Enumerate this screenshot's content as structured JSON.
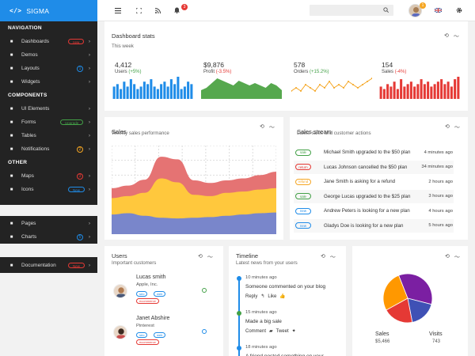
{
  "brand": {
    "code": "</>",
    "name": "SIGMA",
    "color": "#1f8ce8"
  },
  "topbar": {
    "notif_count": "3",
    "avatar_count": "1",
    "search_placeholder": ""
  },
  "sidebar": {
    "sections": [
      {
        "header": "NAVIGATION",
        "items": [
          {
            "label": "Dashboards",
            "icon": "dashboard-icon",
            "badge": "new",
            "badge_color": "#e53935"
          },
          {
            "label": "Demos",
            "icon": "demos-icon"
          },
          {
            "label": "Layouts",
            "icon": "code-icon",
            "count": "1",
            "count_color": "#1f8ce8"
          },
          {
            "label": "Widgets",
            "icon": "widgets-icon"
          }
        ]
      },
      {
        "header": "COMPONENTS",
        "items": [
          {
            "label": "UI Elements",
            "icon": "ui-elements-icon"
          },
          {
            "label": "Forms",
            "icon": "forms-icon",
            "badge": "Upgrade",
            "badge_color": "#43a047"
          },
          {
            "label": "Tables",
            "icon": "tables-icon"
          },
          {
            "label": "Notifications",
            "icon": "bell-icon",
            "count": "2",
            "count_color": "#f5a623"
          }
        ]
      },
      {
        "header": "OTHER",
        "items": [
          {
            "label": "Maps",
            "icon": "map-icon",
            "count": "3",
            "count_color": "#e53935"
          },
          {
            "label": "Icons",
            "icon": "icons-icon",
            "badge": "New",
            "badge_color": "#1f8ce8"
          }
        ]
      }
    ],
    "block2": [
      {
        "label": "Pages",
        "icon": "pages-icon"
      },
      {
        "label": "Charts",
        "icon": "charts-icon",
        "count": "5",
        "count_color": "#1f8ce8"
      }
    ],
    "block3": [
      {
        "label": "Documentation",
        "icon": "documentation-icon",
        "badge": "New",
        "badge_color": "#e53935"
      }
    ]
  },
  "dashboard": {
    "title": "Dashboard stats",
    "subtitle": "This week",
    "kpis": [
      {
        "value": "4,412",
        "label": "Users",
        "change": "(+5%)",
        "trend": "up",
        "color": "#1f8ce8",
        "type": "bar",
        "points": [
          5,
          6,
          4,
          7,
          5,
          8,
          6,
          4,
          5,
          7,
          6,
          8,
          5,
          4,
          6,
          7,
          5,
          8,
          6,
          9,
          4,
          5,
          7,
          6
        ]
      },
      {
        "value": "$9,876",
        "label": "Profit",
        "change": "(-3.5%)",
        "trend": "down",
        "color": "#56a84e",
        "type": "area",
        "points": [
          3,
          4,
          6,
          8,
          7,
          6,
          5,
          7,
          6,
          5,
          6,
          5,
          4,
          6,
          5,
          3
        ]
      },
      {
        "value": "578",
        "label": "Orders",
        "change": "(+15.2%)",
        "trend": "up",
        "color": "#f5a623",
        "type": "line",
        "points": [
          2,
          3,
          2,
          4,
          3,
          2,
          4,
          3,
          5,
          3,
          4,
          3,
          5,
          4,
          3,
          4,
          5,
          6
        ]
      },
      {
        "value": "154",
        "label": "Sales",
        "change": "(-4%)",
        "trend": "down",
        "color": "#e53935",
        "type": "bar",
        "points": [
          5,
          4,
          6,
          5,
          7,
          4,
          8,
          5,
          6,
          7,
          5,
          6,
          8,
          6,
          7,
          5,
          6,
          7,
          8,
          6,
          7,
          5,
          8,
          9
        ]
      }
    ]
  },
  "sales_card": {
    "title": "Sales",
    "subtitle": "Weekly sales performance"
  },
  "sales_chart": {
    "type": "area",
    "x": [
      0,
      1,
      2,
      3,
      4,
      5,
      6,
      7,
      8,
      9,
      10
    ],
    "series": [
      {
        "color": "#7986cb",
        "values": [
          3,
          3.2,
          2.8,
          2.5,
          2.4,
          2.5,
          2.6,
          2.8,
          3,
          3.2,
          3.3
        ]
      },
      {
        "color": "#ffc83d",
        "values": [
          2.5,
          2.6,
          3.5,
          6,
          5.5,
          3.5,
          3.2,
          3.5,
          3.5,
          3.6,
          3.7
        ]
      },
      {
        "color": "#e57373",
        "values": [
          1.5,
          1.6,
          2,
          3.3,
          3.5,
          2.2,
          2,
          1.9,
          2,
          2.2,
          2.5
        ]
      }
    ]
  },
  "stream": {
    "title": "Sales stream",
    "subtitle": "Latest sales and customer actions",
    "rows": [
      {
        "tag": "sale",
        "tag_color": "#43a047",
        "text": "Michael Smith upgraded to the $50 plan",
        "time": "4 minutes ago"
      },
      {
        "tag": "return",
        "tag_color": "#e53935",
        "text": "Lucas Johnson cancelled the $50 plan",
        "time": "34 minutes ago"
      },
      {
        "tag": "refund",
        "tag_color": "#f5a623",
        "text": "Jane Smith is asking for a refund",
        "time": "2 hours ago"
      },
      {
        "tag": "sale",
        "tag_color": "#43a047",
        "text": "George Lucas upgraded to the $25 plan",
        "time": "3 hours ago"
      },
      {
        "tag": "new",
        "tag_color": "#1f8ce8",
        "text": "Andrew Peters is looking for a new plan",
        "time": "4 hours ago"
      },
      {
        "tag": "new",
        "tag_color": "#1f8ce8",
        "text": "Gladys Doe is looking for a new plan",
        "time": "5 hours ago"
      }
    ]
  },
  "users": {
    "title": "Users",
    "subtitle": "Important customers",
    "list": [
      {
        "name": "Lucas smith",
        "company": "Apple, Inc.",
        "tags": [
          "seo",
          "web"
        ],
        "tag2": "ecommerce",
        "status_color": "#43a047"
      },
      {
        "name": "Janet Abshire",
        "company": "Pinterest",
        "tags": [
          "seo",
          "web"
        ],
        "tag2": "ecommerce",
        "status_color": "#1f8ce8"
      }
    ]
  },
  "timeline": {
    "title": "Timeline",
    "subtitle": "Latest news from your users",
    "items": [
      {
        "time": "10 minutes ago",
        "text": "Someone commented on your blog",
        "a1": "Reply",
        "a2": "Like",
        "dot": "#1f8ce8"
      },
      {
        "time": "15 minutes ago",
        "text": "Made a big sale",
        "a1": "Comment",
        "a2": "Tweet",
        "dot": "#43a047"
      },
      {
        "time": "18 minutes ago",
        "text": "A friend posted something on your",
        "dot": "#1f8ce8"
      }
    ]
  },
  "pie": {
    "chart_data": {
      "type": "pie",
      "slices": [
        {
          "value": 35,
          "color": "#7b1fa2"
        },
        {
          "value": 18,
          "color": "#3f51b5"
        },
        {
          "value": 20,
          "color": "#e53935"
        },
        {
          "value": 27,
          "color": "#ff9800"
        }
      ]
    },
    "stat1_label": "Sales",
    "stat1_value": "$5,466",
    "stat2_label": "Visits",
    "stat2_value": "743"
  }
}
